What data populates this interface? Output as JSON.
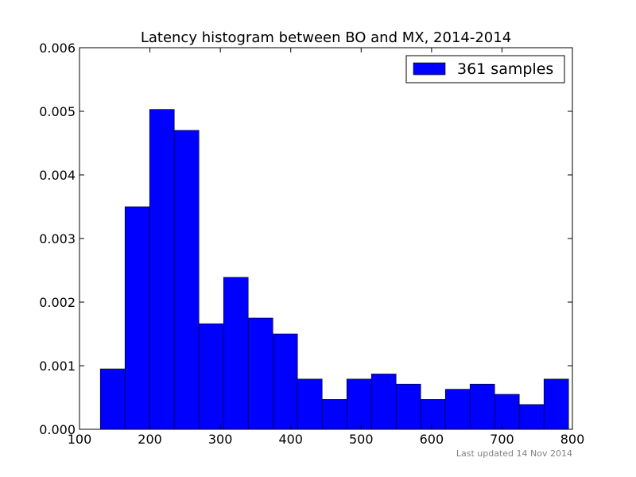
{
  "chart_data": {
    "type": "bar",
    "title": "Latency histogram between BO and MX, 2014-2014",
    "xlabel": "",
    "ylabel": "",
    "xlim": [
      100,
      800
    ],
    "ylim": [
      0,
      0.006
    ],
    "xticks": [
      "100",
      "200",
      "300",
      "400",
      "500",
      "600",
      "700",
      "800"
    ],
    "yticks": [
      "0.000",
      "0.001",
      "0.002",
      "0.003",
      "0.004",
      "0.005",
      "0.006"
    ],
    "bin_edges": [
      129.6,
      164.6,
      199.6,
      234.6,
      269.6,
      304.6,
      339.6,
      374.6,
      409.6,
      444.6,
      479.6,
      514.6,
      549.6,
      584.6,
      619.6,
      654.6,
      689.6,
      724.6,
      759.6,
      794.6
    ],
    "values": [
      0.00095,
      0.0035,
      0.00503,
      0.0047,
      0.00166,
      0.00239,
      0.00175,
      0.0015,
      0.00079,
      0.00047,
      0.00079,
      0.00087,
      0.00071,
      0.00047,
      0.00063,
      0.00071,
      0.00055,
      0.00039,
      0.00079
    ],
    "bar_color": "#0000ff",
    "legend": {
      "label": "361 samples",
      "position": "top-right"
    },
    "grid": false
  },
  "footer": {
    "text": "Last updated 14 Nov 2014"
  }
}
